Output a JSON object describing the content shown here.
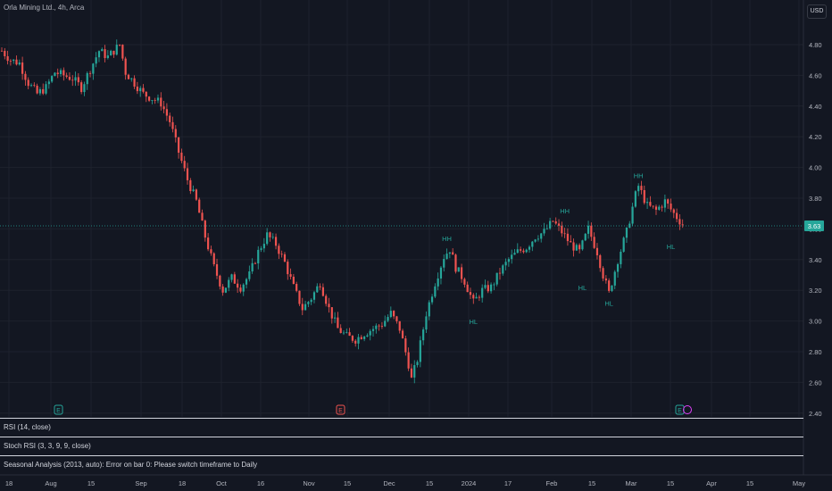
{
  "header": {
    "symbol_label": "Orla Mining Ltd., 4h, Arca",
    "currency": "USD"
  },
  "price_axis": {
    "ticks": [
      "4.80",
      "4.60",
      "4.40",
      "4.20",
      "4.00",
      "3.80",
      "3.60",
      "3.40",
      "3.20",
      "3.00",
      "2.80",
      "2.60",
      "2.40"
    ],
    "current_price": "3.63"
  },
  "time_axis": {
    "ticks": [
      "18",
      "Aug",
      "15",
      "Sep",
      "18",
      "Oct",
      "16",
      "Nov",
      "15",
      "Dec",
      "15",
      "2024",
      "17",
      "Feb",
      "15",
      "Mar",
      "15",
      "Apr",
      "15",
      "May"
    ]
  },
  "annotations": {
    "labels": [
      "HH",
      "HL",
      "HH",
      "HL",
      "HL",
      "HH",
      "HL"
    ]
  },
  "event_markers": [
    "E",
    "E",
    "E"
  ],
  "indicators": {
    "rsi": "RSI (14, close)",
    "stoch_rsi": "Stoch RSI (3, 3, 9, 9, close)",
    "seasonal": "Seasonal Analysis (2013, auto): Error on bar 0: Please switch timeframe to Daily"
  },
  "colors": {
    "up": "#26a69a",
    "down": "#ef5350",
    "background": "#131722",
    "grid": "#1e222d"
  },
  "chart_data": {
    "type": "candlestick",
    "title": "Orla Mining Ltd., 4h, Arca",
    "ylim": [
      2.4,
      4.85
    ],
    "path_points": [
      [
        0,
        4.76
      ],
      [
        3,
        4.7
      ],
      [
        6,
        4.68
      ],
      [
        9,
        4.55
      ],
      [
        12,
        4.48
      ],
      [
        15,
        4.52
      ],
      [
        18,
        4.62
      ],
      [
        21,
        4.6
      ],
      [
        24,
        4.58
      ],
      [
        27,
        4.52
      ],
      [
        30,
        4.64
      ],
      [
        33,
        4.76
      ],
      [
        36,
        4.72
      ],
      [
        39,
        4.78
      ],
      [
        40,
        4.8
      ],
      [
        42,
        4.62
      ],
      [
        45,
        4.55
      ],
      [
        48,
        4.48
      ],
      [
        51,
        4.45
      ],
      [
        54,
        4.42
      ],
      [
        57,
        4.3
      ],
      [
        60,
        4.1
      ],
      [
        63,
        3.92
      ],
      [
        66,
        3.78
      ],
      [
        69,
        3.55
      ],
      [
        72,
        3.35
      ],
      [
        75,
        3.2
      ],
      [
        78,
        3.28
      ],
      [
        81,
        3.22
      ],
      [
        84,
        3.3
      ],
      [
        87,
        3.45
      ],
      [
        90,
        3.56
      ],
      [
        93,
        3.5
      ],
      [
        96,
        3.38
      ],
      [
        99,
        3.22
      ],
      [
        102,
        3.08
      ],
      [
        105,
        3.15
      ],
      [
        108,
        3.25
      ],
      [
        111,
        3.08
      ],
      [
        114,
        2.95
      ],
      [
        117,
        2.9
      ],
      [
        120,
        2.88
      ],
      [
        123,
        2.92
      ],
      [
        126,
        2.95
      ],
      [
        129,
        2.98
      ],
      [
        132,
        3.05
      ],
      [
        135,
        2.95
      ],
      [
        138,
        2.72
      ],
      [
        139,
        2.62
      ],
      [
        141,
        2.75
      ],
      [
        144,
        3.05
      ],
      [
        147,
        3.25
      ],
      [
        150,
        3.42
      ],
      [
        152,
        3.47
      ],
      [
        154,
        3.35
      ],
      [
        157,
        3.26
      ],
      [
        160,
        3.12
      ],
      [
        163,
        3.2
      ],
      [
        166,
        3.22
      ],
      [
        169,
        3.32
      ],
      [
        172,
        3.4
      ],
      [
        175,
        3.45
      ],
      [
        178,
        3.48
      ],
      [
        181,
        3.55
      ],
      [
        184,
        3.58
      ],
      [
        187,
        3.65
      ],
      [
        190,
        3.58
      ],
      [
        193,
        3.5
      ],
      [
        196,
        3.45
      ],
      [
        199,
        3.6
      ],
      [
        202,
        3.45
      ],
      [
        204,
        3.3
      ],
      [
        206,
        3.18
      ],
      [
        209,
        3.4
      ],
      [
        212,
        3.58
      ],
      [
        215,
        3.82
      ],
      [
        216,
        3.88
      ],
      [
        219,
        3.75
      ],
      [
        222,
        3.72
      ],
      [
        225,
        3.78
      ],
      [
        228,
        3.7
      ],
      [
        231,
        3.63
      ]
    ],
    "swing_labels": [
      {
        "text": "HH",
        "x": 151,
        "price": 3.52
      },
      {
        "text": "HL",
        "x": 160,
        "price": 2.98
      },
      {
        "text": "HH",
        "x": 191,
        "price": 3.7
      },
      {
        "text": "HL",
        "x": 197,
        "price": 3.2
      },
      {
        "text": "HL",
        "x": 206,
        "price": 3.1
      },
      {
        "text": "HH",
        "x": 216,
        "price": 3.93
      },
      {
        "text": "HL",
        "x": 227,
        "price": 3.47
      }
    ]
  }
}
